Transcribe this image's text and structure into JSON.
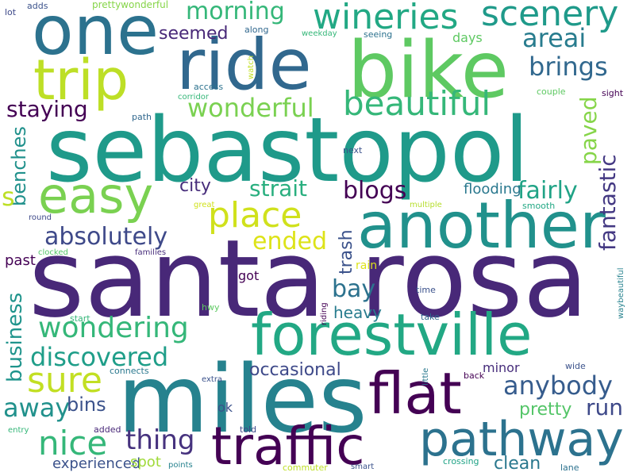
{
  "words": [
    {
      "text": "santa rosa",
      "color": "#482878"
    },
    {
      "text": "sebastopol",
      "color": "#1f9a8a"
    },
    {
      "text": "miles",
      "color": "#26828e"
    },
    {
      "text": "bike",
      "color": "#5ec962"
    },
    {
      "text": "ride",
      "color": "#31688e"
    },
    {
      "text": "one",
      "color": "#2c728e"
    },
    {
      "text": "another",
      "color": "#21918c"
    },
    {
      "text": "forestville",
      "color": "#22a884"
    },
    {
      "text": "flat",
      "color": "#440154"
    },
    {
      "text": "traffic",
      "color": "#440154"
    },
    {
      "text": "pathway",
      "color": "#2c728e"
    },
    {
      "text": "trip",
      "color": "#bddf26"
    },
    {
      "text": "easy",
      "color": "#7ad151"
    },
    {
      "text": "wineries",
      "color": "#22a884"
    },
    {
      "text": "scenery",
      "color": "#1f9a8a"
    },
    {
      "text": "beautiful",
      "color": "#35b779"
    },
    {
      "text": "place",
      "color": "#d0e11c"
    },
    {
      "text": "morning",
      "color": "#35b779"
    },
    {
      "text": "wonderful",
      "color": "#7ad151"
    },
    {
      "text": "areai",
      "color": "#287c8e"
    },
    {
      "text": "brings",
      "color": "#31688e"
    },
    {
      "text": "staying",
      "color": "#440154"
    },
    {
      "text": "seemed",
      "color": "#482878"
    },
    {
      "text": "absolutely",
      "color": "#3e4989"
    },
    {
      "text": "wondering",
      "color": "#35b779"
    },
    {
      "text": "discovered",
      "color": "#1f9e89"
    },
    {
      "text": "sure",
      "color": "#c2df23"
    },
    {
      "text": "nice",
      "color": "#35b779"
    },
    {
      "text": "thing",
      "color": "#46327e"
    },
    {
      "text": "away",
      "color": "#21918c"
    },
    {
      "text": "anybody",
      "color": "#365c8d"
    },
    {
      "text": "fantastic",
      "color": "#443983"
    },
    {
      "text": "paved",
      "color": "#86d549"
    },
    {
      "text": "blogs",
      "color": "#440154"
    },
    {
      "text": "strait",
      "color": "#29af7f"
    },
    {
      "text": "fairly",
      "color": "#20a386"
    },
    {
      "text": "city",
      "color": "#472d7b"
    },
    {
      "text": "benches",
      "color": "#21918c"
    },
    {
      "text": "s",
      "color": "#bddf26"
    },
    {
      "text": "ended",
      "color": "#dde318"
    },
    {
      "text": "trash",
      "color": "#3b528b"
    },
    {
      "text": "flooding",
      "color": "#2a788e"
    },
    {
      "text": "bay",
      "color": "#2c728e"
    },
    {
      "text": "business",
      "color": "#1f948c"
    },
    {
      "text": "occasional",
      "color": "#3e4989"
    },
    {
      "text": "heavy",
      "color": "#287c8e"
    },
    {
      "text": "bins",
      "color": "#3b528b"
    },
    {
      "text": "pretty",
      "color": "#54c568"
    },
    {
      "text": "run",
      "color": "#3e4989"
    },
    {
      "text": "clean",
      "color": "#2a788e"
    },
    {
      "text": "experienced",
      "color": "#3b528b"
    },
    {
      "text": "spot",
      "color": "#a0da39"
    },
    {
      "text": "minor",
      "color": "#472d7b"
    },
    {
      "text": "past",
      "color": "#440154"
    },
    {
      "text": "ok",
      "color": "#3b528b"
    },
    {
      "text": "got",
      "color": "#440154"
    },
    {
      "text": "days",
      "color": "#5ec962"
    },
    {
      "text": "adds",
      "color": "#3b528b"
    },
    {
      "text": "prettywonderful",
      "color": "#86d549"
    },
    {
      "text": "lot",
      "color": "#3e4989"
    },
    {
      "text": "along",
      "color": "#31688e"
    },
    {
      "text": "weekday",
      "color": "#35b779"
    },
    {
      "text": "seeing",
      "color": "#2c728e"
    },
    {
      "text": "access",
      "color": "#2c728e"
    },
    {
      "text": "watch",
      "color": "#c2df23"
    },
    {
      "text": "corridor",
      "color": "#35b779"
    },
    {
      "text": "path",
      "color": "#31688e"
    },
    {
      "text": "couple",
      "color": "#5ec962"
    },
    {
      "text": "sight",
      "color": "#440154"
    },
    {
      "text": "next",
      "color": "#3b528b"
    },
    {
      "text": "great",
      "color": "#d0e11c"
    },
    {
      "text": "multiple",
      "color": "#b5de2b"
    },
    {
      "text": "smooth",
      "color": "#22a884"
    },
    {
      "text": "round",
      "color": "#3e4989"
    },
    {
      "text": "clocked",
      "color": "#54c568"
    },
    {
      "text": "families",
      "color": "#472d7b"
    },
    {
      "text": "rain",
      "color": "#dde318"
    },
    {
      "text": "time",
      "color": "#3b528b"
    },
    {
      "text": "hwy",
      "color": "#5ec962"
    },
    {
      "text": "riding",
      "color": "#440154"
    },
    {
      "text": "waybeautiful",
      "color": "#26828e"
    },
    {
      "text": "start",
      "color": "#35b779"
    },
    {
      "text": "take",
      "color": "#31688e"
    },
    {
      "text": "little",
      "color": "#2a788e"
    },
    {
      "text": "connects",
      "color": "#2a788e"
    },
    {
      "text": "back",
      "color": "#440154"
    },
    {
      "text": "extra",
      "color": "#3b528b"
    },
    {
      "text": "wide",
      "color": "#3b528b"
    },
    {
      "text": "entry",
      "color": "#35b779"
    },
    {
      "text": "added",
      "color": "#482878"
    },
    {
      "text": "told",
      "color": "#3e4989"
    },
    {
      "text": "points",
      "color": "#26828e"
    },
    {
      "text": "commuter",
      "color": "#bddf26"
    },
    {
      "text": "smart",
      "color": "#3b528b"
    },
    {
      "text": "crossing",
      "color": "#20a386"
    },
    {
      "text": "lane",
      "color": "#2c728e"
    }
  ]
}
